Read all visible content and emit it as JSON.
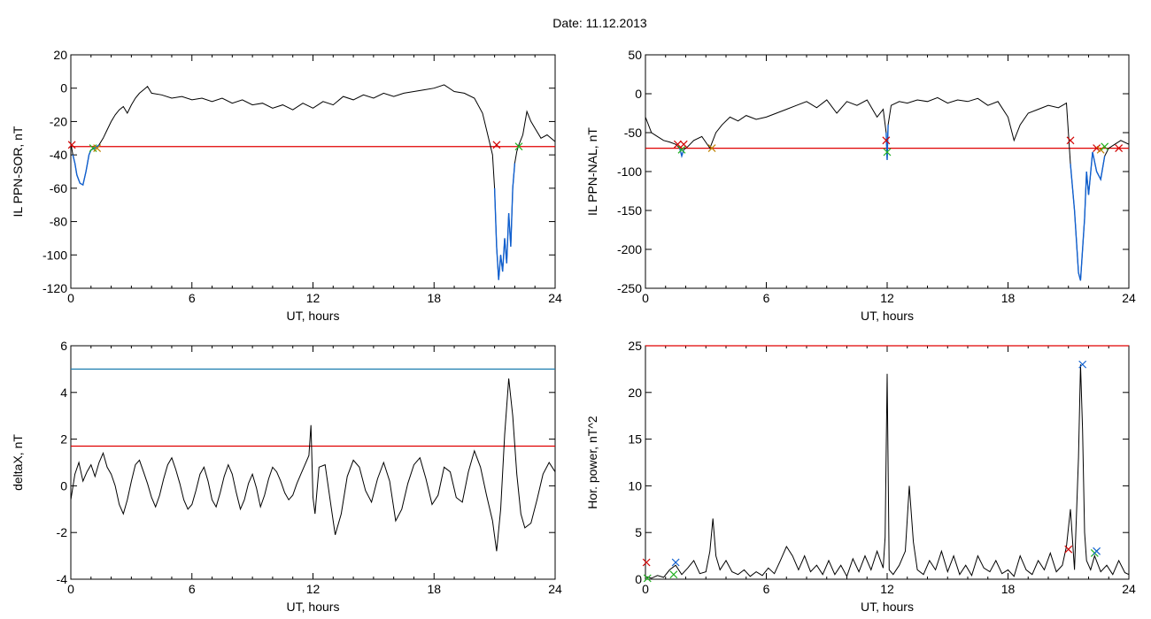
{
  "title": "Date:  11.12.2013",
  "colors": {
    "data_line": "#000000",
    "threshold_red": "#e00000",
    "threshold_blue": "#1f7fb0",
    "event_blue": "#1060d0",
    "marker_red": "#d00000",
    "marker_green": "#20b020",
    "marker_blue": "#1060d0",
    "marker_orange": "#c08000"
  },
  "chart_data": [
    {
      "id": "sor",
      "type": "line",
      "xlabel": "UT, hours",
      "ylabel": "IL PPN-SOR, nT",
      "xlim": [
        0,
        24
      ],
      "ylim": [
        -120,
        20
      ],
      "xticks": [
        0,
        6,
        12,
        18,
        24
      ],
      "xtick_labels": [
        "0",
        "6",
        "12",
        "18",
        "24"
      ],
      "yticks": [
        -120,
        -100,
        -80,
        -60,
        -40,
        -20,
        0,
        20
      ],
      "ytick_labels": [
        "-120",
        "-100",
        "-80",
        "-60",
        "-40",
        "-20",
        "0",
        "20"
      ],
      "threshold": {
        "y": -35,
        "color": "red"
      },
      "series": [
        {
          "x": [
            0,
            0.1,
            0.2,
            0.3,
            0.45,
            0.6,
            0.75,
            0.9,
            1.0,
            1.2,
            1.4,
            1.6,
            1.8,
            2.0,
            2.2,
            2.4,
            2.6,
            2.8,
            3.0,
            3.2,
            3.4,
            3.6,
            3.8,
            4.0,
            4.5,
            5.0,
            5.5,
            6.0,
            6.5,
            7.0,
            7.5,
            8.0,
            8.5,
            9.0,
            9.5,
            10.0,
            10.5,
            11.0,
            11.5,
            12.0,
            12.5,
            13.0,
            13.5,
            14.0,
            14.5,
            15.0,
            15.5,
            16.0,
            16.5,
            17.0,
            17.5,
            18.0,
            18.5,
            19.0,
            19.5,
            20.0,
            20.4,
            20.7,
            20.9,
            21.0,
            21.1,
            21.2,
            21.3,
            21.4,
            21.5,
            21.6,
            21.7,
            21.8,
            21.9,
            22.0,
            22.1,
            22.2,
            22.4,
            22.6,
            22.8,
            23.0,
            23.3,
            23.6,
            24.0
          ],
          "y": [
            -33,
            -40,
            -45,
            -52,
            -57,
            -58,
            -50,
            -40,
            -37,
            -36,
            -34,
            -30,
            -25,
            -20,
            -16,
            -13,
            -11,
            -15,
            -10,
            -6,
            -3,
            -1,
            1,
            -3,
            -4,
            -6,
            -5,
            -7,
            -6,
            -8,
            -6,
            -9,
            -7,
            -10,
            -9,
            -12,
            -10,
            -13,
            -9,
            -12,
            -8,
            -10,
            -5,
            -7,
            -4,
            -6,
            -3,
            -5,
            -3,
            -2,
            -1,
            0,
            2,
            -2,
            -3,
            -6,
            -15,
            -30,
            -40,
            -60,
            -95,
            -115,
            -100,
            -110,
            -90,
            -105,
            -75,
            -95,
            -60,
            -45,
            -38,
            -34,
            -28,
            -14,
            -20,
            -24,
            -30,
            -28,
            -32
          ],
          "color": "black",
          "highlight": [
            {
              "x_from": 0.1,
              "x_to": 1.5,
              "color": "blue"
            },
            {
              "x_from": 21.0,
              "x_to": 22.0,
              "color": "blue"
            }
          ]
        }
      ],
      "markers": [
        {
          "x": 0.05,
          "y": -34,
          "color": "red"
        },
        {
          "x": 1.1,
          "y": -36,
          "color": "green"
        },
        {
          "x": 1.3,
          "y": -36,
          "color": "orange"
        },
        {
          "x": 21.1,
          "y": -34,
          "color": "red"
        },
        {
          "x": 22.2,
          "y": -35,
          "color": "green"
        }
      ]
    },
    {
      "id": "nal",
      "type": "line",
      "xlabel": "UT, hours",
      "ylabel": "IL PPN-NAL, nT",
      "xlim": [
        0,
        24
      ],
      "ylim": [
        -250,
        50
      ],
      "xticks": [
        0,
        6,
        12,
        18,
        24
      ],
      "xtick_labels": [
        "0",
        "6",
        "12",
        "18",
        "24"
      ],
      "yticks": [
        -250,
        -200,
        -150,
        -100,
        -50,
        0,
        50
      ],
      "ytick_labels": [
        "-250",
        "-200",
        "-150",
        "-100",
        "-50",
        "0",
        "50"
      ],
      "threshold": {
        "y": -70,
        "color": "red"
      },
      "series": [
        {
          "x": [
            0,
            0.3,
            0.6,
            0.9,
            1.2,
            1.5,
            1.7,
            1.8,
            1.9,
            2.1,
            2.4,
            2.8,
            3.2,
            3.5,
            3.8,
            4.2,
            4.6,
            5.0,
            5.5,
            6.0,
            6.5,
            7.0,
            7.5,
            8.0,
            8.5,
            9.0,
            9.5,
            10.0,
            10.5,
            11.0,
            11.5,
            11.8,
            11.95,
            12.0,
            12.05,
            12.2,
            12.6,
            13.0,
            13.5,
            14.0,
            14.5,
            15.0,
            15.5,
            16.0,
            16.5,
            17.0,
            17.5,
            18.0,
            18.3,
            18.6,
            19.0,
            19.5,
            20.0,
            20.5,
            20.9,
            21.1,
            21.3,
            21.5,
            21.6,
            21.7,
            21.8,
            21.9,
            22.0,
            22.2,
            22.4,
            22.6,
            22.8,
            23.0,
            23.3,
            23.6,
            24.0
          ],
          "y": [
            -30,
            -50,
            -55,
            -60,
            -62,
            -65,
            -70,
            -80,
            -72,
            -68,
            -60,
            -55,
            -70,
            -50,
            -40,
            -30,
            -35,
            -28,
            -33,
            -30,
            -25,
            -20,
            -15,
            -10,
            -18,
            -8,
            -25,
            -10,
            -15,
            -8,
            -30,
            -20,
            -50,
            -85,
            -40,
            -15,
            -10,
            -12,
            -8,
            -10,
            -5,
            -12,
            -8,
            -10,
            -6,
            -15,
            -10,
            -30,
            -60,
            -40,
            -25,
            -20,
            -15,
            -18,
            -12,
            -90,
            -150,
            -230,
            -240,
            -200,
            -160,
            -100,
            -130,
            -75,
            -100,
            -110,
            -80,
            -70,
            -65,
            -60,
            -65
          ],
          "color": "black",
          "highlight": [
            {
              "x_from": 1.6,
              "x_to": 2.0,
              "color": "blue"
            },
            {
              "x_from": 11.95,
              "x_to": 12.05,
              "color": "blue"
            },
            {
              "x_from": 21.1,
              "x_to": 22.9,
              "color": "blue"
            }
          ]
        }
      ],
      "markers": [
        {
          "x": 1.6,
          "y": -65,
          "color": "red"
        },
        {
          "x": 1.8,
          "y": -72,
          "color": "green"
        },
        {
          "x": 1.9,
          "y": -65,
          "color": "red"
        },
        {
          "x": 3.3,
          "y": -70,
          "color": "orange"
        },
        {
          "x": 11.95,
          "y": -60,
          "color": "red"
        },
        {
          "x": 12.0,
          "y": -75,
          "color": "green"
        },
        {
          "x": 21.1,
          "y": -60,
          "color": "red"
        },
        {
          "x": 22.4,
          "y": -70,
          "color": "red"
        },
        {
          "x": 22.6,
          "y": -72,
          "color": "orange"
        },
        {
          "x": 22.8,
          "y": -68,
          "color": "green"
        },
        {
          "x": 23.5,
          "y": -70,
          "color": "red"
        }
      ]
    },
    {
      "id": "deltax",
      "type": "line",
      "xlabel": "UT, hours",
      "ylabel": "deltaX, nT",
      "xlim": [
        0,
        24
      ],
      "ylim": [
        -4,
        6
      ],
      "xticks": [
        0,
        6,
        12,
        18,
        24
      ],
      "xtick_labels": [
        "0",
        "6",
        "12",
        "18",
        "24"
      ],
      "yticks": [
        -4,
        -2,
        0,
        2,
        4,
        6
      ],
      "ytick_labels": [
        "-4",
        "-2",
        "0",
        "2",
        "4",
        "6"
      ],
      "thresholds": [
        {
          "y": 5.0,
          "color": "blue"
        },
        {
          "y": 1.7,
          "color": "red"
        }
      ],
      "series": [
        {
          "x": [
            0,
            0.2,
            0.4,
            0.6,
            0.8,
            1.0,
            1.2,
            1.4,
            1.6,
            1.8,
            2.0,
            2.2,
            2.4,
            2.6,
            2.8,
            3.0,
            3.2,
            3.4,
            3.6,
            3.8,
            4.0,
            4.2,
            4.4,
            4.6,
            4.8,
            5.0,
            5.2,
            5.4,
            5.6,
            5.8,
            6.0,
            6.2,
            6.4,
            6.6,
            6.8,
            7.0,
            7.2,
            7.4,
            7.6,
            7.8,
            8.0,
            8.2,
            8.4,
            8.6,
            8.8,
            9.0,
            9.2,
            9.4,
            9.6,
            9.8,
            10.0,
            10.2,
            10.4,
            10.6,
            10.8,
            11.0,
            11.2,
            11.4,
            11.6,
            11.8,
            11.9,
            12.0,
            12.1,
            12.3,
            12.6,
            12.9,
            13.1,
            13.4,
            13.7,
            14.0,
            14.3,
            14.6,
            14.9,
            15.2,
            15.5,
            15.8,
            16.1,
            16.4,
            16.7,
            17.0,
            17.3,
            17.6,
            17.9,
            18.2,
            18.5,
            18.8,
            19.1,
            19.4,
            19.7,
            20.0,
            20.3,
            20.6,
            20.9,
            21.1,
            21.3,
            21.5,
            21.7,
            21.9,
            22.1,
            22.3,
            22.5,
            22.8,
            23.1,
            23.4,
            23.7,
            24.0
          ],
          "y": [
            -0.6,
            0.5,
            1.0,
            0.2,
            0.6,
            0.9,
            0.4,
            1.0,
            1.4,
            0.8,
            0.5,
            0.0,
            -0.8,
            -1.2,
            -0.6,
            0.2,
            0.9,
            1.1,
            0.6,
            0.1,
            -0.5,
            -0.9,
            -0.4,
            0.3,
            0.9,
            1.2,
            0.7,
            0.1,
            -0.6,
            -1.0,
            -0.8,
            -0.2,
            0.5,
            0.8,
            0.2,
            -0.6,
            -0.9,
            -0.3,
            0.4,
            0.9,
            0.5,
            -0.3,
            -1.0,
            -0.6,
            0.1,
            0.5,
            -0.1,
            -0.9,
            -0.4,
            0.3,
            0.8,
            0.6,
            0.2,
            -0.3,
            -0.6,
            -0.4,
            0.1,
            0.5,
            0.9,
            1.3,
            2.6,
            -0.5,
            -1.2,
            0.8,
            0.9,
            -0.9,
            -2.1,
            -1.2,
            0.4,
            1.1,
            0.8,
            -0.2,
            -0.7,
            0.3,
            1.0,
            0.2,
            -1.5,
            -1.0,
            0.1,
            0.9,
            1.2,
            0.3,
            -0.8,
            -0.4,
            0.8,
            0.6,
            -0.5,
            -0.7,
            0.6,
            1.5,
            0.8,
            -0.4,
            -1.5,
            -2.8,
            -1.0,
            2.2,
            4.6,
            3.0,
            0.5,
            -1.2,
            -1.8,
            -1.6,
            -0.6,
            0.5,
            1.0,
            0.6
          ],
          "color": "black"
        }
      ]
    },
    {
      "id": "power",
      "type": "line",
      "xlabel": "UT, hours",
      "ylabel": "Hor. power, nT^2",
      "xlim": [
        0,
        24
      ],
      "ylim": [
        0,
        25
      ],
      "xticks": [
        0,
        6,
        12,
        18,
        24
      ],
      "xtick_labels": [
        "0",
        "6",
        "12",
        "18",
        "24"
      ],
      "yticks": [
        0,
        5,
        10,
        15,
        20,
        25
      ],
      "ytick_labels": [
        "0",
        "5",
        "10",
        "15",
        "20",
        "25"
      ],
      "threshold": {
        "y": 25,
        "color": "red"
      },
      "series": [
        {
          "x": [
            0,
            0.3,
            0.6,
            0.9,
            1.2,
            1.5,
            1.8,
            2.1,
            2.4,
            2.7,
            3.0,
            3.2,
            3.35,
            3.5,
            3.7,
            4.0,
            4.3,
            4.6,
            4.9,
            5.2,
            5.5,
            5.8,
            6.1,
            6.4,
            6.7,
            7.0,
            7.3,
            7.6,
            7.9,
            8.2,
            8.5,
            8.8,
            9.1,
            9.4,
            9.7,
            10.0,
            10.3,
            10.6,
            10.9,
            11.2,
            11.5,
            11.8,
            11.9,
            12.0,
            12.1,
            12.3,
            12.6,
            12.9,
            13.1,
            13.3,
            13.5,
            13.8,
            14.1,
            14.4,
            14.7,
            15.0,
            15.3,
            15.6,
            15.9,
            16.2,
            16.5,
            16.8,
            17.1,
            17.4,
            17.7,
            18.0,
            18.3,
            18.6,
            18.9,
            19.2,
            19.5,
            19.8,
            20.1,
            20.4,
            20.7,
            20.9,
            21.1,
            21.3,
            21.5,
            21.6,
            21.7,
            21.8,
            21.9,
            22.1,
            22.3,
            22.6,
            22.9,
            23.2,
            23.5,
            23.8,
            24.0
          ],
          "y": [
            0.3,
            0.1,
            0.4,
            0.2,
            1.0,
            1.5,
            0.5,
            1.2,
            2.0,
            0.6,
            0.8,
            3.0,
            6.5,
            2.5,
            1.0,
            2.0,
            0.8,
            0.5,
            1.0,
            0.3,
            0.8,
            0.4,
            1.2,
            0.6,
            2.0,
            3.5,
            2.5,
            1.0,
            2.5,
            0.8,
            1.5,
            0.5,
            2.0,
            0.5,
            1.5,
            0.3,
            2.2,
            0.8,
            2.5,
            1.0,
            3.0,
            1.2,
            4.5,
            22.0,
            1.0,
            0.5,
            1.5,
            3.0,
            10.0,
            4.0,
            1.0,
            0.5,
            2.0,
            1.0,
            3.0,
            0.8,
            2.5,
            0.5,
            1.5,
            0.4,
            2.5,
            1.2,
            0.8,
            2.0,
            0.6,
            1.0,
            0.3,
            2.5,
            1.0,
            0.5,
            2.0,
            1.0,
            2.8,
            0.8,
            1.5,
            3.5,
            7.5,
            1.0,
            13.0,
            23.0,
            16.0,
            5.0,
            2.0,
            1.0,
            2.5,
            0.8,
            1.5,
            0.5,
            2.0,
            0.7,
            0.5
          ],
          "color": "black"
        }
      ],
      "markers": [
        {
          "x": 0.05,
          "y": 1.8,
          "color": "red"
        },
        {
          "x": 0.1,
          "y": 0.1,
          "color": "green"
        },
        {
          "x": 1.4,
          "y": 0.5,
          "color": "green"
        },
        {
          "x": 1.5,
          "y": 1.8,
          "color": "blue"
        },
        {
          "x": 21.0,
          "y": 3.2,
          "color": "red"
        },
        {
          "x": 21.7,
          "y": 23.0,
          "color": "blue"
        },
        {
          "x": 22.3,
          "y": 2.8,
          "color": "green"
        },
        {
          "x": 22.4,
          "y": 3.0,
          "color": "blue"
        }
      ]
    }
  ]
}
